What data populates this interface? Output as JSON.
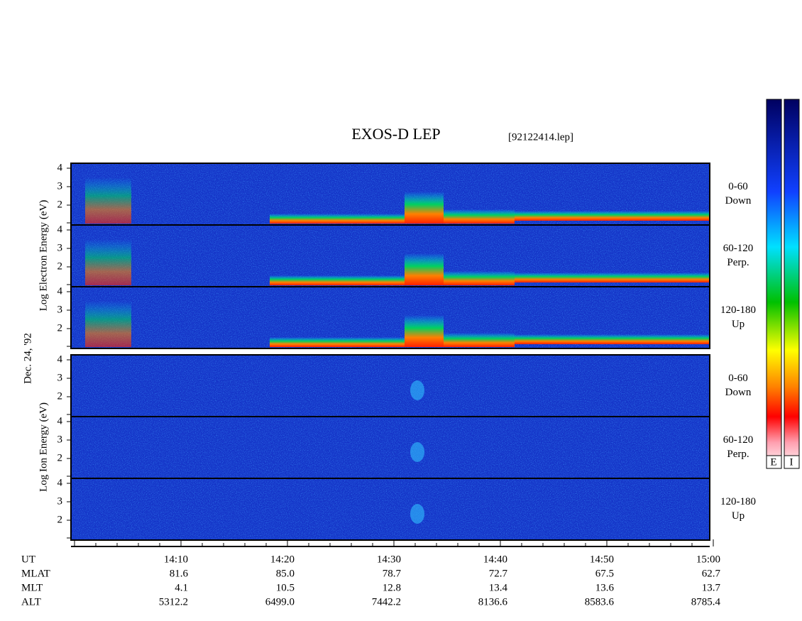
{
  "title": "EXOS-D LEP",
  "file": "[92122414.lep]",
  "date": "Dec. 24, '92",
  "energy_ticks": [
    2,
    3,
    4
  ],
  "electron": {
    "axis_label": "Log Electron Energy (eV)",
    "panels": [
      [
        "0-60",
        "Down"
      ],
      [
        "60-120",
        "Perp."
      ],
      [
        "120-180",
        "Up"
      ]
    ]
  },
  "ion": {
    "axis_label": "Log Ion Energy (eV)",
    "panels": [
      [
        "0-60",
        "Down"
      ],
      [
        "60-120",
        "Perp."
      ],
      [
        "120-180",
        "Up"
      ]
    ]
  },
  "orbit": {
    "row_labels": [
      "UT",
      "MLAT",
      "MLT",
      "ALT"
    ],
    "columns": [
      [
        "14:10",
        "81.6",
        "4.1",
        "5312.2"
      ],
      [
        "14:20",
        "85.0",
        "10.5",
        "6499.0"
      ],
      [
        "14:30",
        "78.7",
        "12.8",
        "7442.2"
      ],
      [
        "14:40",
        "72.7",
        "13.4",
        "8136.6"
      ],
      [
        "14:50",
        "67.5",
        "13.6",
        "8583.6"
      ],
      [
        "15:00",
        "62.7",
        "13.7",
        "8785.4"
      ]
    ]
  },
  "colorbar_labels": [
    "E",
    "I"
  ]
}
